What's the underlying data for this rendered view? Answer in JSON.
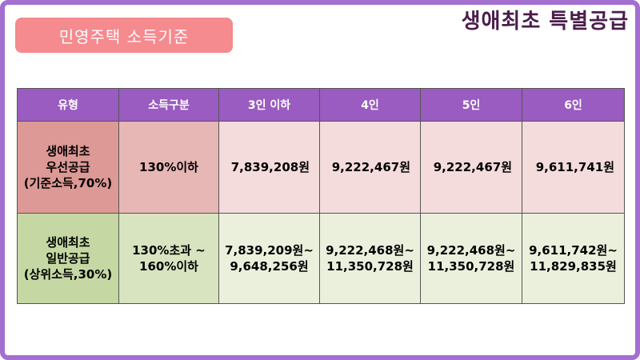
{
  "badge_label": "민영주택 소득기준",
  "title": "생애최초 특별공급",
  "table": {
    "headers": [
      "유형",
      "소득구분",
      "3인 이하",
      "4인",
      "5인",
      "6인"
    ],
    "rows": [
      {
        "type": [
          "생애최초",
          "우선공급",
          "(기준소득,70%)"
        ],
        "income": [
          "130%이하"
        ],
        "values": [
          [
            "7,839,208원"
          ],
          [
            "9,222,467원"
          ],
          [
            "9,222,467원"
          ],
          [
            "9,611,741원"
          ]
        ]
      },
      {
        "type": [
          "생애최초",
          "일반공급",
          "(상위소득,30%)"
        ],
        "income": [
          "130%초과 ~",
          "160%이하"
        ],
        "values": [
          [
            "7,839,209원~",
            "9,648,256원"
          ],
          [
            "9,222,468원~",
            "11,350,728원"
          ],
          [
            "9,222,468원~",
            "11,350,728원"
          ],
          [
            "9,611,742원~",
            "11,829,835원"
          ]
        ]
      }
    ]
  },
  "colors": {
    "frame": "#a36fd0",
    "badge": "#f58a8f",
    "header": "#9a5cc0",
    "title_text": "#4b1d4b",
    "row1_type": "#dc9995",
    "row1_income": "#e6b7b5",
    "row1_values": "#f3dcdb",
    "row2_type": "#c5d8a3",
    "row2_income": "#d7e4bf",
    "row2_values": "#ebf0dd"
  }
}
